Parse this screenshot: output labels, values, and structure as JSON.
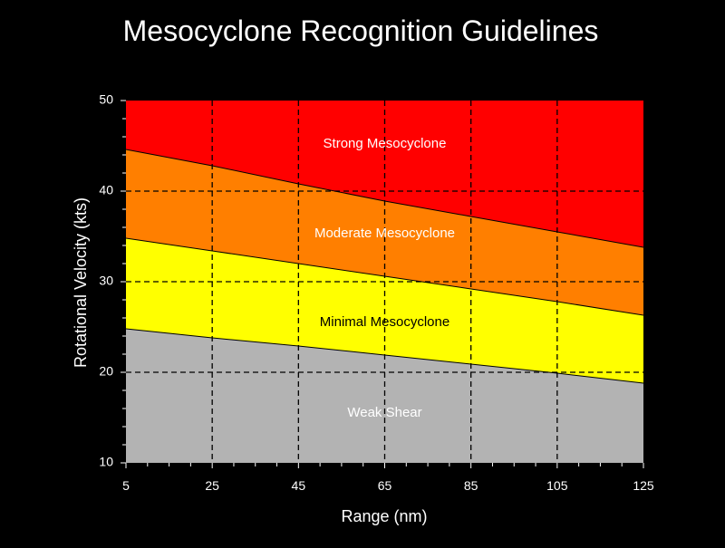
{
  "chart_data": {
    "type": "area",
    "title": "Mesocyclone Recognition Guidelines",
    "xlabel": "Range (nm)",
    "ylabel": "Rotational Velocity (kts)",
    "xlim": [
      5,
      125
    ],
    "ylim": [
      10,
      50
    ],
    "xticks": [
      5,
      25,
      45,
      65,
      85,
      105,
      125
    ],
    "yticks": [
      10,
      20,
      30,
      40,
      50
    ],
    "grid": true,
    "x": [
      5,
      25,
      45,
      65,
      85,
      105,
      125
    ],
    "boundaries": [
      {
        "between": [
          "Weak Shear",
          "Minimal Mesocyclone"
        ],
        "y": [
          24.8,
          23.8,
          22.9,
          21.9,
          20.9,
          19.9,
          18.8
        ]
      },
      {
        "between": [
          "Minimal Mesocyclone",
          "Moderate Mesocyclone"
        ],
        "y": [
          34.8,
          33.4,
          32.0,
          30.6,
          29.2,
          27.8,
          26.3
        ]
      },
      {
        "between": [
          "Moderate Mesocyclone",
          "Strong Mesocyclone"
        ],
        "y": [
          44.6,
          42.8,
          40.8,
          38.9,
          37.2,
          35.5,
          33.8
        ]
      }
    ],
    "regions": [
      {
        "name": "Weak Shear",
        "color": "#b3b3b3",
        "label_x": 65,
        "label_y": 15.5,
        "text_color": "#ffffff"
      },
      {
        "name": "Minimal Mesocyclone",
        "color": "#ffff00",
        "label_x": 65,
        "label_y": 25.5,
        "text_color": "#000000"
      },
      {
        "name": "Moderate Mesocyclone",
        "color": "#ff7f00",
        "label_x": 65,
        "label_y": 35.3,
        "text_color": "#ffffff"
      },
      {
        "name": "Strong Mesocyclone",
        "color": "#ff0000",
        "label_x": 65,
        "label_y": 45.2,
        "text_color": "#ffffff"
      }
    ],
    "colors": {
      "background": "#000000",
      "text": "#ffffff",
      "grid": "#000000",
      "boundary": "#000000"
    }
  }
}
